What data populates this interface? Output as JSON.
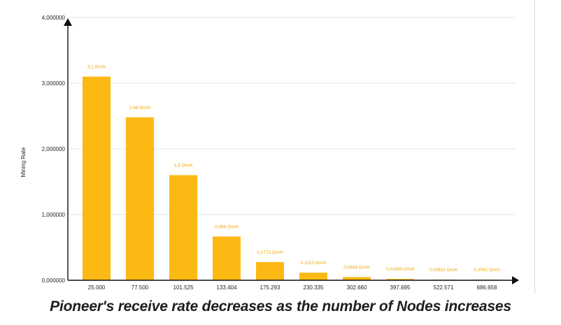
{
  "chart_data": {
    "type": "bar",
    "title": "",
    "ylabel": "Mining Rate",
    "xlabel": "",
    "ylim": [
      0,
      4000000
    ],
    "yticks": [
      {
        "value": 0,
        "label": "0,000000"
      },
      {
        "value": 1000000,
        "label": "1,000000"
      },
      {
        "value": 2000000,
        "label": "2,000000"
      },
      {
        "value": 3000000,
        "label": "3,000000"
      },
      {
        "value": 4000000,
        "label": "4,000000"
      }
    ],
    "categories": [
      "25.000",
      "77.500",
      "101.525",
      "133.404",
      "175.293",
      "230.335",
      "302.660",
      "397.695",
      "522.571",
      "686.658"
    ],
    "values": [
      3100000,
      2480000,
      1600000,
      666000,
      277300,
      115300,
      48800,
      19990,
      8320,
      4100
    ],
    "data_labels": [
      "3,1 Ωm/h",
      "2,48 Ωm/h",
      "1,6 Ωm/h",
      "0,666 Ωm/h",
      "0,2773 Ωm/h",
      "0,1153 Ωm/h",
      "0,0488 Ωm/h",
      "0,01999 Ωm/h",
      "0,00832 Ωm/h",
      "0,0041 Ωm/h"
    ],
    "grid": true,
    "bar_color": "#FDB913",
    "label_color": "#F5A800",
    "axis_color": "#111111",
    "grid_color": "#e6e6e6"
  },
  "caption": "Pioneer's receive rate decreases as the number of Nodes increases"
}
